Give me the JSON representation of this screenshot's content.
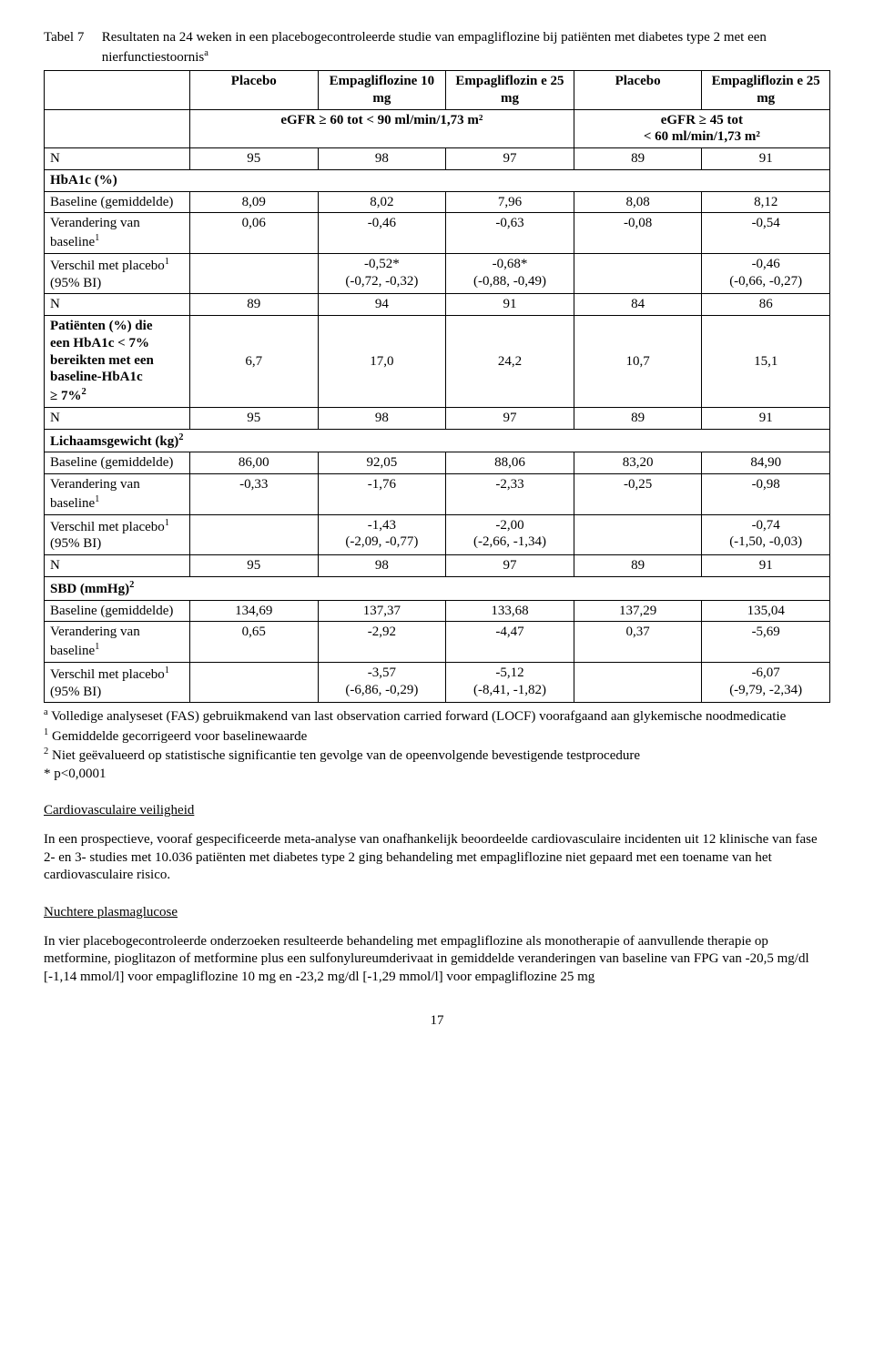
{
  "table": {
    "label": "Tabel 7",
    "title": "Resultaten na 24 weken in een placebogecontroleerde studie van empagliflozine bij patiënten met diabetes type 2 met een nierfunctiestoornis",
    "title_sup": "a",
    "headers": {
      "placebo": "Placebo",
      "empa10": "Empagliflozine 10 mg",
      "empa25a": "Empagliflozin e 25 mg",
      "placebo2": "Placebo",
      "empa25b": "Empagliflozin e 25 mg",
      "egfr_left": "eGFR ≥ 60 tot < 90 ml/min/1,73 m²",
      "egfr_right_line1": "eGFR ≥ 45 tot",
      "egfr_right_line2": "< 60 ml/min/1,73 m²"
    },
    "row_labels": {
      "N": "N",
      "hba1c_section": "HbA1c (%)",
      "baseline_mean": "Baseline (gemiddelde)",
      "change_baseline": "Verandering van baseline",
      "change_sup": "1",
      "diff_placebo": "Verschil met placebo",
      "diff_sup": "1",
      "diff_bi": " (95% BI)",
      "pct_patients_l1": "Patiënten (%) die",
      "pct_patients_l2": "een HbA1c < 7%",
      "pct_patients_l3": "bereikten met een",
      "pct_patients_l4": "baseline-HbA1c",
      "pct_patients_l5": "≥ 7%",
      "pct_sup": "2",
      "bodyweight_section": "Lichaamsgewicht (kg)",
      "bw_sup": "2",
      "sbd_section": "SBD (mmHg)",
      "sbd_sup": "2"
    },
    "data": {
      "n1": [
        "95",
        "98",
        "97",
        "89",
        "91"
      ],
      "hba1c_baseline": [
        "8,09",
        "8,02",
        "7,96",
        "8,08",
        "8,12"
      ],
      "hba1c_change": [
        "0,06",
        "-0,46",
        "-0,63",
        "-0,08",
        "-0,54"
      ],
      "hba1c_diff_top": [
        "-0,52*",
        "-0,68*",
        "-0,46"
      ],
      "hba1c_diff_bot": [
        "(-0,72, -0,32)",
        "(-0,88, -0,49)",
        "(-0,66, -0,27)"
      ],
      "n2": [
        "89",
        "94",
        "91",
        "84",
        "86"
      ],
      "pct_patients": [
        "6,7",
        "17,0",
        "24,2",
        "10,7",
        "15,1"
      ],
      "n3": [
        "95",
        "98",
        "97",
        "89",
        "91"
      ],
      "bw_baseline": [
        "86,00",
        "92,05",
        "88,06",
        "83,20",
        "84,90"
      ],
      "bw_change": [
        "-0,33",
        "-1,76",
        "-2,33",
        "-0,25",
        "-0,98"
      ],
      "bw_diff_top": [
        "-1,43",
        "-2,00",
        "-0,74"
      ],
      "bw_diff_bot": [
        "(-2,09, -0,77)",
        "(-2,66, -1,34)",
        "(-1,50, -0,03)"
      ],
      "n4": [
        "95",
        "98",
        "97",
        "89",
        "91"
      ],
      "sbd_baseline": [
        "134,69",
        "137,37",
        "133,68",
        "137,29",
        "135,04"
      ],
      "sbd_change": [
        "0,65",
        "-2,92",
        "-4,47",
        "0,37",
        "-5,69"
      ],
      "sbd_diff_top": [
        "-3,57",
        "-5,12",
        "-6,07"
      ],
      "sbd_diff_bot": [
        "(-6,86, -0,29)",
        "(-8,41, -1,82)",
        "(-9,79, -2,34)"
      ]
    }
  },
  "footnotes": {
    "a": "Volledige analyseset (FAS) gebruikmakend van last observation carried forward (LOCF) voorafgaand aan glykemische noodmedicatie",
    "f1": "Gemiddelde gecorrigeerd voor baselinewaarde",
    "f2": "Niet geëvalueerd op statistische significantie ten gevolge van de opeenvolgende bevestigende testprocedure",
    "star": "* p<0,0001"
  },
  "sections": {
    "cv_heading": "Cardiovasculaire veiligheid",
    "cv_para": "In een prospectieve, vooraf gespecificeerde meta-analyse van onafhankelijk beoordeelde cardiovasculaire incidenten uit 12 klinische van fase 2- en 3- studies met 10.036 patiënten met diabetes type 2 ging behandeling met empagliflozine niet gepaard met een toename van het cardiovasculaire risico.",
    "npg_heading": "Nuchtere plasmaglucose",
    "npg_para": "In vier placebogecontroleerde onderzoeken resulteerde behandeling met empagliflozine als monotherapie of aanvullende therapie op metformine, pioglitazon of metformine plus een sulfonylureumderivaat in gemiddelde veranderingen van baseline van FPG van -20,5 mg/dl [-1,14 mmol/l] voor empagliflozine 10 mg en -23,2 mg/dl [-1,29 mmol/l] voor empagliflozine 25 mg"
  },
  "page_number": "17"
}
